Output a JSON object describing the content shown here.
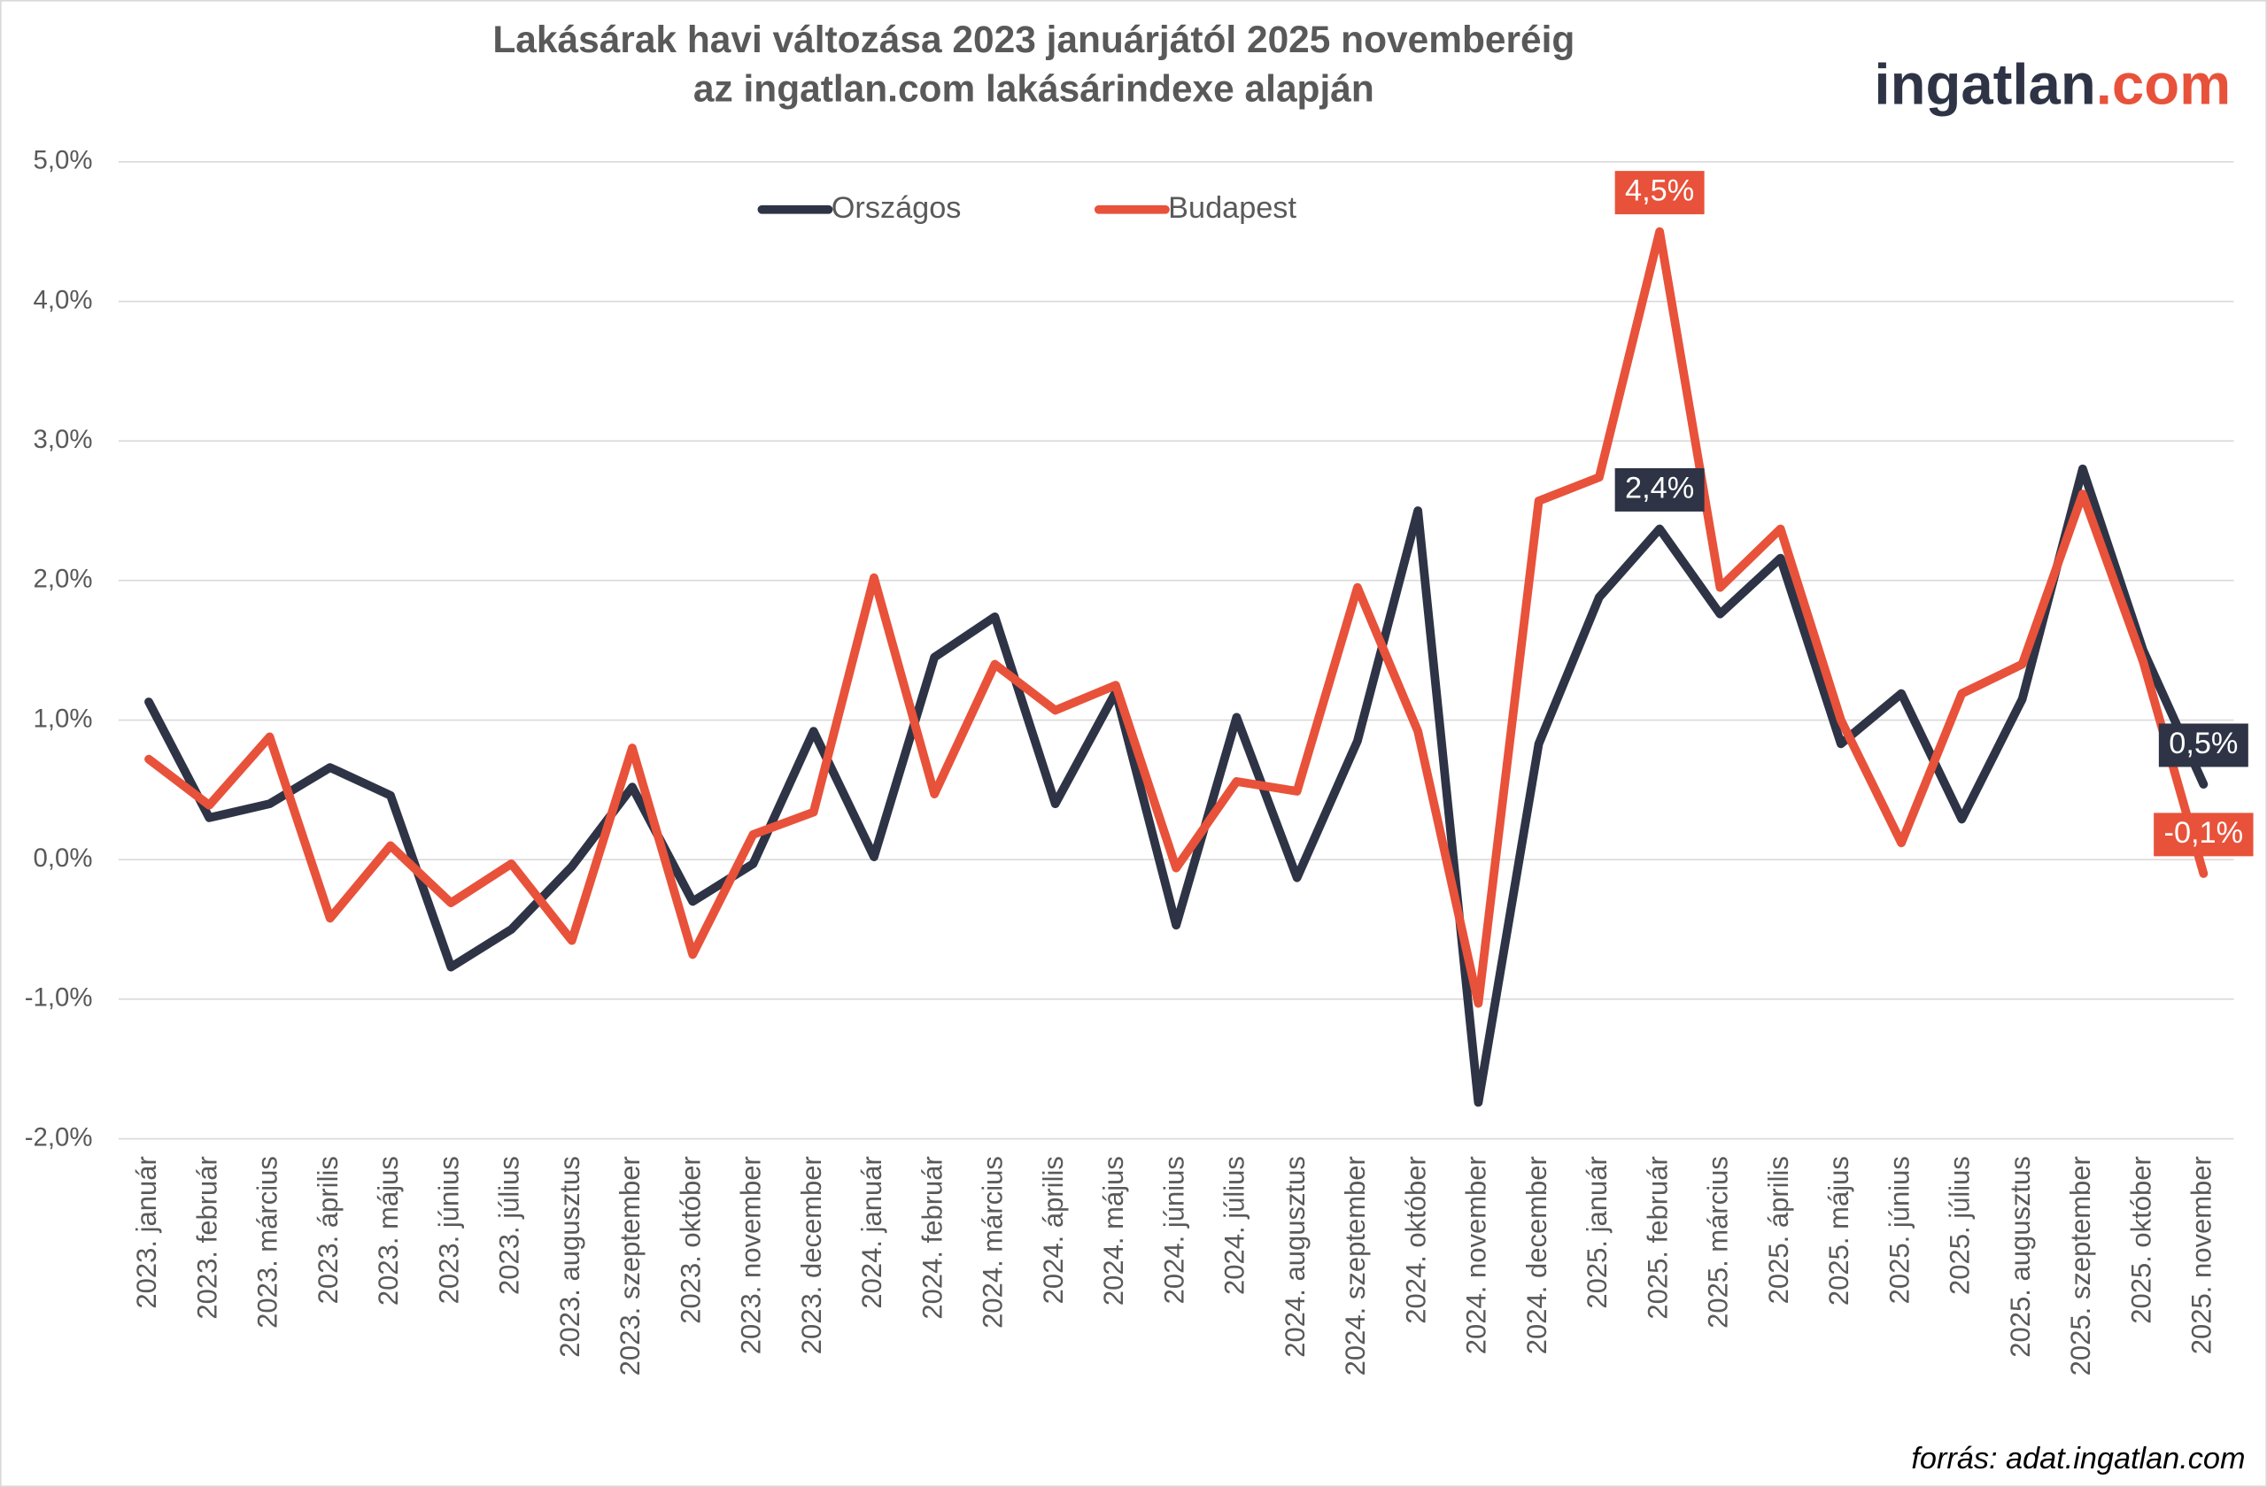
{
  "chart_data": {
    "type": "line",
    "title": "Lakásárak havi változása 2023 januárjától 2025 novemberéig",
    "subtitle": "az ingatlan.com lakásárindexe alapján",
    "logo": {
      "text": "ingatlan",
      "suffix": ".com",
      "color": "#e8523a"
    },
    "source": "forrás: adat.ingatlan.com",
    "categories": [
      "2023. január",
      "2023. február",
      "2023. március",
      "2023. április",
      "2023. május",
      "2023. június",
      "2023. július",
      "2023. augusztus",
      "2023. szeptember",
      "2023. október",
      "2023. november",
      "2023. december",
      "2024. január",
      "2024. február",
      "2024. március",
      "2024. április",
      "2024. május",
      "2024. június",
      "2024. július",
      "2024. augusztus",
      "2024. szeptember",
      "2024. október",
      "2024. november",
      "2024. december",
      "2025. január",
      "2025. február",
      "2025. március",
      "2025. április",
      "2025. május",
      "2025. június",
      "2025. július",
      "2025. augusztus",
      "2025. szeptember",
      "2025. október",
      "2025. november"
    ],
    "series": [
      {
        "name": "Országos",
        "color": "#2e3445",
        "values": [
          1.13,
          0.3,
          0.4,
          0.66,
          0.46,
          -0.77,
          -0.5,
          -0.05,
          0.52,
          -0.3,
          -0.03,
          0.92,
          0.02,
          1.45,
          1.74,
          0.4,
          1.2,
          -0.47,
          1.02,
          -0.13,
          0.85,
          2.5,
          -1.74,
          0.83,
          1.88,
          2.37,
          1.76,
          2.16,
          0.83,
          1.19,
          0.29,
          1.15,
          2.8,
          1.5,
          0.54
        ],
        "value_labels": [
          null,
          null,
          null,
          null,
          null,
          null,
          null,
          null,
          null,
          null,
          null,
          null,
          null,
          null,
          null,
          null,
          null,
          null,
          null,
          null,
          null,
          null,
          null,
          null,
          null,
          "2,4%",
          null,
          null,
          null,
          null,
          null,
          null,
          null,
          null,
          "0,5%"
        ]
      },
      {
        "name": "Budapest",
        "color": "#e8523a",
        "values": [
          0.72,
          0.39,
          0.88,
          -0.42,
          0.1,
          -0.31,
          -0.03,
          -0.58,
          0.8,
          -0.68,
          0.18,
          0.34,
          2.02,
          0.47,
          1.4,
          1.07,
          1.25,
          -0.06,
          0.56,
          0.49,
          1.95,
          0.92,
          -1.03,
          2.57,
          2.74,
          4.5,
          1.95,
          2.37,
          1.0,
          0.12,
          1.19,
          1.4,
          2.62,
          1.42,
          -0.1
        ],
        "value_labels": [
          null,
          null,
          null,
          null,
          null,
          null,
          null,
          null,
          null,
          null,
          null,
          null,
          null,
          null,
          null,
          null,
          null,
          null,
          null,
          null,
          null,
          null,
          null,
          null,
          null,
          "4,5%",
          null,
          null,
          null,
          null,
          null,
          null,
          null,
          null,
          "-0,1%"
        ]
      }
    ],
    "ylim": [
      -2,
      5
    ],
    "yticks": [
      {
        "value": -2,
        "label": "-2,0%"
      },
      {
        "value": -1,
        "label": "-1,0%"
      },
      {
        "value": 0,
        "label": "0,0%"
      },
      {
        "value": 1,
        "label": "1,0%"
      },
      {
        "value": 2,
        "label": "2,0%"
      },
      {
        "value": 3,
        "label": "3,0%"
      },
      {
        "value": 4,
        "label": "4,0%"
      },
      {
        "value": 5,
        "label": "5,0%"
      }
    ],
    "grid": true,
    "legend": "top"
  }
}
